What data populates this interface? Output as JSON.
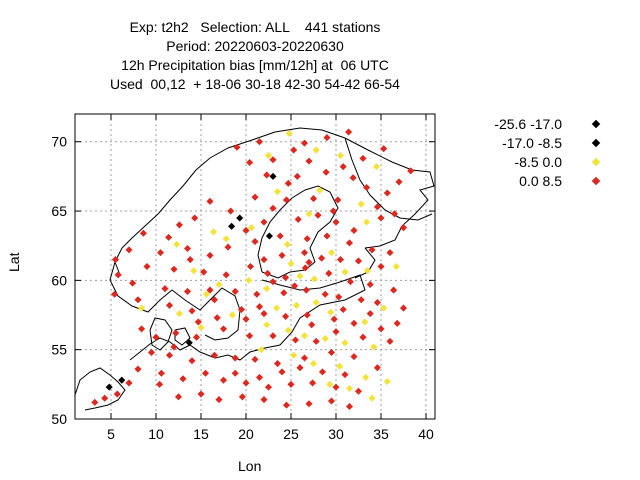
{
  "chart_data": {
    "type": "scatter",
    "title_lines": [
      "Exp: t2h2   Selection: ALL    441 stations",
      "Period: 20220603-20220630",
      "12h Precipitation bias [mm/12h] at  06 UTC",
      "Used  00,12  + 18-06 30-18 42-30 54-42 66-54"
    ],
    "xlabel": "Lon",
    "ylabel": "Lat",
    "xlim": [
      1,
      41
    ],
    "ylim": [
      50,
      72
    ],
    "xticks": [
      5,
      10,
      15,
      20,
      25,
      30,
      35,
      40
    ],
    "yticks": [
      50,
      55,
      60,
      65,
      70
    ],
    "grid": true,
    "legend_position": "outside-right",
    "series": [
      {
        "name": "-25.6 -17.0",
        "color": "#000000",
        "points": [
          [
            23.0,
            67.5
          ],
          [
            19.3,
            64.5
          ],
          [
            6.2,
            52.8
          ],
          [
            13.7,
            55.5
          ]
        ]
      },
      {
        "name": "-17.0 -8.5",
        "color": "#000000",
        "points": [
          [
            18.4,
            63.9
          ],
          [
            4.8,
            52.3
          ],
          [
            22.6,
            63.2
          ]
        ]
      },
      {
        "name": "-8.5 0.0",
        "color": "#f2e23a",
        "points": [
          [
            22.5,
            69.0
          ],
          [
            24.8,
            70.6
          ],
          [
            27.8,
            69.4
          ],
          [
            30.5,
            69.0
          ],
          [
            34.5,
            68.2
          ],
          [
            28.2,
            66.5
          ],
          [
            32.8,
            65.5
          ],
          [
            16.4,
            63.5
          ],
          [
            20.6,
            63.8
          ],
          [
            27.0,
            64.8
          ],
          [
            33.4,
            64.2
          ],
          [
            12.3,
            62.6
          ],
          [
            24.6,
            62.6
          ],
          [
            29.5,
            62.0
          ],
          [
            25.0,
            61.2
          ],
          [
            26.0,
            60.3
          ],
          [
            27.6,
            60.1
          ],
          [
            31.0,
            60.6
          ],
          [
            33.5,
            60.7
          ],
          [
            20.3,
            60.0
          ],
          [
            22.3,
            59.4
          ],
          [
            15.6,
            59.0
          ],
          [
            17.0,
            59.7
          ],
          [
            23.4,
            58.0
          ],
          [
            25.6,
            58.2
          ],
          [
            27.8,
            58.4
          ],
          [
            29.4,
            57.7
          ],
          [
            33.2,
            57.0
          ],
          [
            35.3,
            58.0
          ],
          [
            12.6,
            57.6
          ],
          [
            15.0,
            56.6
          ],
          [
            18.5,
            57.5
          ],
          [
            22.3,
            56.8
          ],
          [
            24.7,
            56.4
          ],
          [
            26.5,
            56.0
          ],
          [
            28.8,
            55.8
          ],
          [
            31.0,
            55.5
          ],
          [
            34.2,
            55.2
          ],
          [
            21.7,
            55.0
          ],
          [
            25.3,
            54.6
          ],
          [
            27.5,
            54.0
          ],
          [
            30.4,
            53.8
          ],
          [
            33.3,
            53.0
          ],
          [
            29.3,
            52.5
          ],
          [
            31.5,
            52.2
          ],
          [
            34.0,
            51.5
          ],
          [
            35.7,
            52.7
          ],
          [
            17.8,
            63.0
          ],
          [
            36.7,
            61.0
          ],
          [
            8.4,
            58.0
          ],
          [
            14.2,
            60.7
          ],
          [
            23.5,
            66.4
          ]
        ]
      },
      {
        "name": "0.0 8.5",
        "color": "#dc281e",
        "points": [
          [
            19.0,
            69.6
          ],
          [
            21.5,
            70.0
          ],
          [
            26.5,
            69.9
          ],
          [
            29.0,
            70.3
          ],
          [
            31.4,
            70.7
          ],
          [
            25.3,
            69.4
          ],
          [
            23.0,
            68.7
          ],
          [
            20.4,
            68.5
          ],
          [
            27.0,
            68.6
          ],
          [
            33.0,
            68.8
          ],
          [
            35.3,
            69.5
          ],
          [
            22.3,
            67.6
          ],
          [
            25.7,
            67.5
          ],
          [
            28.9,
            67.8
          ],
          [
            31.9,
            67.4
          ],
          [
            35.7,
            66.3
          ],
          [
            37.0,
            67.1
          ],
          [
            21.0,
            66.0
          ],
          [
            24.5,
            65.8
          ],
          [
            27.5,
            65.9
          ],
          [
            30.2,
            65.8
          ],
          [
            33.4,
            66.7
          ],
          [
            35.0,
            64.5
          ],
          [
            37.5,
            63.8
          ],
          [
            16.0,
            65.7
          ],
          [
            18.3,
            65.0
          ],
          [
            23.0,
            65.2
          ],
          [
            25.8,
            64.4
          ],
          [
            28.0,
            64.7
          ],
          [
            30.0,
            64.2
          ],
          [
            32.0,
            63.6
          ],
          [
            14.3,
            64.5
          ],
          [
            12.6,
            64.0
          ],
          [
            18.0,
            62.4
          ],
          [
            21.0,
            62.8
          ],
          [
            23.8,
            63.2
          ],
          [
            26.8,
            63.0
          ],
          [
            29.0,
            63.2
          ],
          [
            31.5,
            62.7
          ],
          [
            34.0,
            62.2
          ],
          [
            36.0,
            62.0
          ],
          [
            10.5,
            62.0
          ],
          [
            13.5,
            62.3
          ],
          [
            16.0,
            61.8
          ],
          [
            22.0,
            61.5
          ],
          [
            24.0,
            61.8
          ],
          [
            26.5,
            62.0
          ],
          [
            28.4,
            61.6
          ],
          [
            30.5,
            61.5
          ],
          [
            32.5,
            61.4
          ],
          [
            35.0,
            61.0
          ],
          [
            5.5,
            61.5
          ],
          [
            7.0,
            62.2
          ],
          [
            9.0,
            61.0
          ],
          [
            12.0,
            60.8
          ],
          [
            15.3,
            60.6
          ],
          [
            17.8,
            60.4
          ],
          [
            20.5,
            61.0
          ],
          [
            22.4,
            60.5
          ],
          [
            24.4,
            60.2
          ],
          [
            26.6,
            60.9
          ],
          [
            29.2,
            60.5
          ],
          [
            31.6,
            59.9
          ],
          [
            33.8,
            59.7
          ],
          [
            36.4,
            59.3
          ],
          [
            5.8,
            60.4
          ],
          [
            7.4,
            59.8
          ],
          [
            11.0,
            59.4
          ],
          [
            13.5,
            59.2
          ],
          [
            16.5,
            58.6
          ],
          [
            18.8,
            59.2
          ],
          [
            21.2,
            59.0
          ],
          [
            24.2,
            59.1
          ],
          [
            26.7,
            59.3
          ],
          [
            28.8,
            59.0
          ],
          [
            30.3,
            58.8
          ],
          [
            32.8,
            58.6
          ],
          [
            34.6,
            58.4
          ],
          [
            37.5,
            58.0
          ],
          [
            5.4,
            59.0
          ],
          [
            8.0,
            58.6
          ],
          [
            11.5,
            58.2
          ],
          [
            14.0,
            57.8
          ],
          [
            16.8,
            57.3
          ],
          [
            19.5,
            57.9
          ],
          [
            22.0,
            57.6
          ],
          [
            24.4,
            57.4
          ],
          [
            26.8,
            57.5
          ],
          [
            29.8,
            57.2
          ],
          [
            32.0,
            56.9
          ],
          [
            35.0,
            56.5
          ],
          [
            8.4,
            56.5
          ],
          [
            10.0,
            55.9
          ],
          [
            12.2,
            56.2
          ],
          [
            14.5,
            55.9
          ],
          [
            17.5,
            56.5
          ],
          [
            20.4,
            56.0
          ],
          [
            23.0,
            56.0
          ],
          [
            25.5,
            55.7
          ],
          [
            27.8,
            55.6
          ],
          [
            30.0,
            56.3
          ],
          [
            33.0,
            55.9
          ],
          [
            36.0,
            55.6
          ],
          [
            9.5,
            54.8
          ],
          [
            11.5,
            54.6
          ],
          [
            14.0,
            54.2
          ],
          [
            16.5,
            54.6
          ],
          [
            18.8,
            54.4
          ],
          [
            21.0,
            54.3
          ],
          [
            23.5,
            54.0
          ],
          [
            26.0,
            53.7
          ],
          [
            28.5,
            53.4
          ],
          [
            31.0,
            53.2
          ],
          [
            34.6,
            53.7
          ],
          [
            8.0,
            53.6
          ],
          [
            10.6,
            53.3
          ],
          [
            13.0,
            52.9
          ],
          [
            15.5,
            53.3
          ],
          [
            17.5,
            52.8
          ],
          [
            20.0,
            52.6
          ],
          [
            22.5,
            52.3
          ],
          [
            25.0,
            52.5
          ],
          [
            27.4,
            52.6
          ],
          [
            30.0,
            52.3
          ],
          [
            32.5,
            52.0
          ],
          [
            7.0,
            52.6
          ],
          [
            5.7,
            51.8
          ],
          [
            4.3,
            51.5
          ],
          [
            3.2,
            51.2
          ],
          [
            10.4,
            52.5
          ],
          [
            12.5,
            51.6
          ],
          [
            15.0,
            51.8
          ],
          [
            17.0,
            51.4
          ],
          [
            19.6,
            51.6
          ],
          [
            22.0,
            51.4
          ],
          [
            24.5,
            51.0
          ],
          [
            27.0,
            51.1
          ],
          [
            29.5,
            51.3
          ],
          [
            31.5,
            50.9
          ],
          [
            18.8,
            53.3
          ],
          [
            21.5,
            53.0
          ],
          [
            24.0,
            53.4
          ],
          [
            26.5,
            54.4
          ],
          [
            29.5,
            54.8
          ],
          [
            32.0,
            54.5
          ],
          [
            20.0,
            57.2
          ],
          [
            16.0,
            59.3
          ],
          [
            13.8,
            61.5
          ],
          [
            11.4,
            63.1
          ],
          [
            8.6,
            63.4
          ],
          [
            20.0,
            63.6
          ],
          [
            22.0,
            64.2
          ],
          [
            24.7,
            67.0
          ],
          [
            29.7,
            65.0
          ],
          [
            34.6,
            65.3
          ],
          [
            36.5,
            64.8
          ],
          [
            38.3,
            67.9
          ],
          [
            30.8,
            68.2
          ],
          [
            27.0,
            61.3
          ],
          [
            23.0,
            59.9
          ],
          [
            25.4,
            59.6
          ],
          [
            30.8,
            57.9
          ],
          [
            33.8,
            57.6
          ],
          [
            36.8,
            56.9
          ],
          [
            27.3,
            56.8
          ],
          [
            21.5,
            58.1
          ],
          [
            12.0,
            55.2
          ],
          [
            14.7,
            57.0
          ]
        ]
      }
    ]
  }
}
